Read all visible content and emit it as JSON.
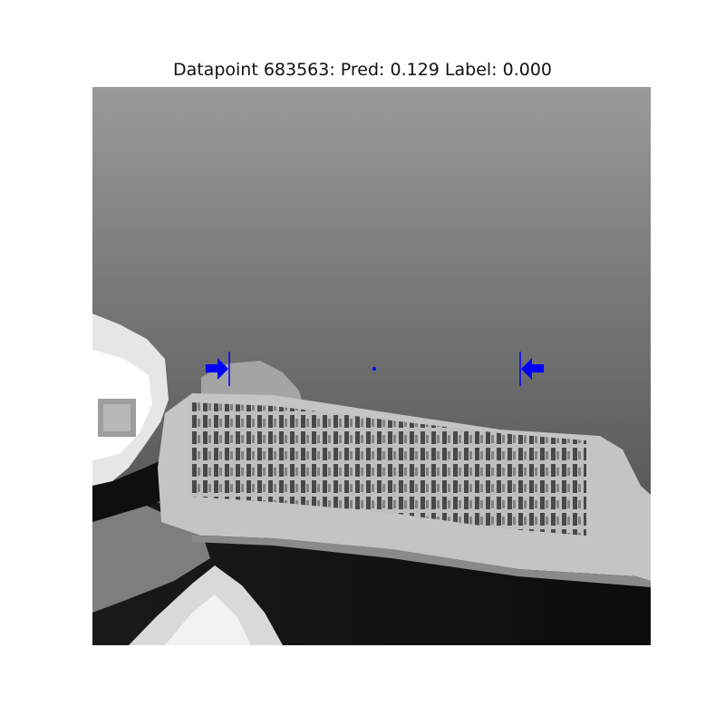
{
  "figure": {
    "title": "Datapoint 683563: Pred: 0.129 Label: 0.000"
  },
  "image": {
    "content": "grayscale depth image",
    "marker_color": "#0000ff"
  }
}
